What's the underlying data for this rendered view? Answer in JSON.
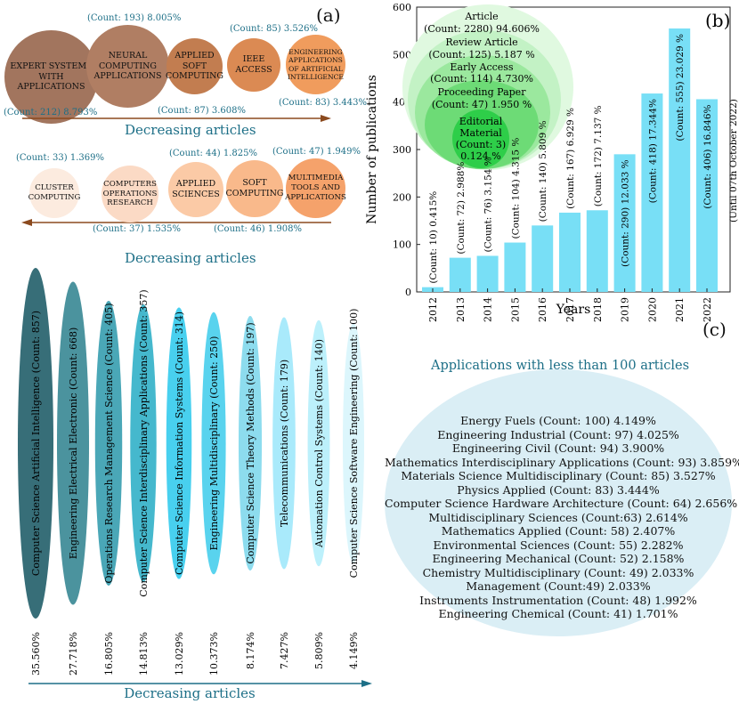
{
  "panel_a": {
    "label": "(a)",
    "row1": [
      {
        "name": "EXPERT SYSTEMS WITH APPLICATIONS",
        "count": "(Count:  212)  8.793%",
        "color": "#a2755e"
      },
      {
        "name": "NEURAL COMPUTING APPLICATIONS",
        "count": "(Count:  193)  8.005%",
        "color": "#b07e63"
      },
      {
        "name": "APPLIED SOFT COMPUTING",
        "count": "(Count:  87)  3.608%",
        "color": "#c27d50"
      },
      {
        "name": "IEEE ACCESS",
        "count": "(Count:  85)  3.526%",
        "color": "#db8a53"
      },
      {
        "name": "ENGINEERING APPLICATIONS OF ARTIFICIAL INTELLIGENCE",
        "count": "(Count:  83)  3.443%",
        "color": "#f09c5d"
      }
    ],
    "row2": [
      {
        "name": "CLUSTER COMPUTING",
        "count": "(Count:  33)  1.369%",
        "color": "#fcebdf"
      },
      {
        "name": "COMPUTERS OPERATIONS RESEARCH",
        "count": "(Count:  37)  1.535%",
        "color": "#fbdac5"
      },
      {
        "name": "APPLIED SCIENCES",
        "count": "(Count:  44)  1.825%",
        "color": "#fbcaa6"
      },
      {
        "name": "SOFT COMPUTING",
        "count": "(Count:  46)  1.908%",
        "color": "#f9b98b"
      },
      {
        "name": "MULTIMEDIA TOOLS AND APPLICATIONS",
        "count": "(Count:  47)  1.949%",
        "color": "#f5a26b"
      }
    ],
    "decreasing_label_1": "Decreasing articles",
    "decreasing_label_2": "Decreasing articles"
  },
  "chart_data": [
    {
      "type": "bar",
      "panel": "(b)",
      "xlabel": "Years",
      "ylabel": "Number of publications",
      "ylim": [
        0,
        600
      ],
      "yticks": [
        0,
        100,
        200,
        300,
        400,
        500,
        600
      ],
      "categories": [
        "2012",
        "2013",
        "2014",
        "2015",
        "2016",
        "2017",
        "2018",
        "2019",
        "2020",
        "2021",
        "2022"
      ],
      "values": [
        10,
        72,
        76,
        104,
        140,
        167,
        172,
        290,
        418,
        555,
        406
      ],
      "data_labels": [
        "(Count: 10) 0.415%",
        "(Count: 72) 2.988%",
        "(Count: 76) 3.154 %",
        "(Count: 104) 4.315 %",
        "(Count: 140) 5.809 %",
        "(Count: 167) 6.929 %",
        "(Count: 172) 7.137 %",
        "(Count: 290) 12.033 %",
        "(Count: 418) 17.344%",
        "(Count: 555) 23.029 %",
        "(Count: 406) 16.846%"
      ],
      "annotation": "(Until 07th October 2022)",
      "bar_color": "#78dff6",
      "doc_types": [
        {
          "label": "Article",
          "count": "(Count: 2280) 94.606%",
          "color": "#e0f9e0"
        },
        {
          "label": "Review Article",
          "count": "(Count: 125) 5.187 %",
          "color": "#c3f2c5"
        },
        {
          "label": "Early Access",
          "count": "(Count: 114) 4.730%",
          "color": "#9be89e"
        },
        {
          "label": "Proceeding Paper",
          "count": "(Count: 47) 1.950 %",
          "color": "#6ddb76"
        },
        {
          "label": "Editorial Material",
          "count": "(Count: 3) 0.124 %",
          "color": "#2ece49"
        }
      ]
    },
    {
      "type": "bar",
      "panel": "categories",
      "categories": [
        "Computer Science Artificial Intelligence (Count: 857)",
        "Engineering Electrical Electronic (Count: 668)",
        "Operations Research Management Science (Count: 405)",
        "Computer Science Interdisciplinary Applications (Count: 357)",
        "Computer Science Information Systems (Count: 314)",
        "Engineering Multidisciplinary (Count: 250)",
        "Computer Science Theory Methods (Count: 197)",
        "Telecommunications (Count: 179)",
        "Automation Control Systems (Count: 140)",
        "Computer Science Software Engineering (Count: 100)"
      ],
      "values": [
        857,
        668,
        405,
        357,
        314,
        250,
        197,
        179,
        140,
        100
      ],
      "percent_labels": [
        "35.560%",
        "27.718%",
        "16.805%",
        "14.813%",
        "13.029%",
        "10.373%",
        "8.174%",
        "7.427%",
        "5.809%",
        "4.149%"
      ],
      "colors": [
        "#376e78",
        "#4b939e",
        "#4aa7b7",
        "#45b8cd",
        "#48d0ef",
        "#59d3ee",
        "#8ddcee",
        "#a9eafb",
        "#bcf0fb",
        "#dcf6fc"
      ],
      "decreasing_label": "Decreasing articles"
    }
  ],
  "panel_c": {
    "label": "(c)",
    "title": "Applications with less than 100 articles",
    "items": [
      "Energy Fuels  (Count:  100) 4.149%",
      "Engineering Industrial  (Count: 97)  4.025%",
      "Engineering Civil  (Count:  94)  3.900%",
      "Mathematics Interdisciplinary Applications  (Count: 93) 3.859%",
      "Materials Science Multidisciplinary  (Count:  85)  3.527%",
      "Physics Applied  (Count: 83)  3.444%",
      "Computer Science Hardware Architecture  (Count:  64)  2.656%",
      "Multidisciplinary Sciences  (Count:63)  2.614%",
      "Mathematics Applied  (Count:  58)  2.407%",
      "Environmental Sciences  (Count:  55)  2.282%",
      "Engineering Mechanical  (Count:  52)  2.158%",
      "Chemistry Multidisciplinary  (Count:  49)  2.033%",
      "Management  (Count:49)  2.033%",
      "Instruments Instrumentation  (Count:  48)  1.992%",
      "Engineering Chemical  (Count:  41)  1.701%"
    ]
  }
}
